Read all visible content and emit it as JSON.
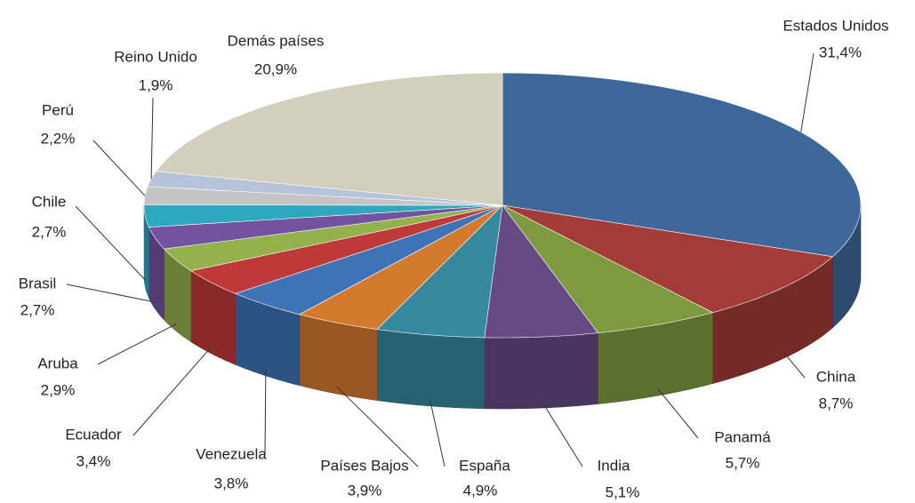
{
  "chart_data": {
    "type": "pie",
    "categories": [
      "Estados Unidos",
      "China",
      "Panamá",
      "India",
      "España",
      "Países Bajos",
      "Venezuela",
      "Ecuador",
      "Aruba",
      "Brasil",
      "Chile",
      "Perú",
      "Reino Unido",
      "Demás países"
    ],
    "values": [
      31.4,
      8.7,
      5.7,
      5.1,
      4.9,
      3.9,
      3.8,
      3.4,
      2.9,
      2.7,
      2.7,
      2.2,
      1.9,
      20.9
    ],
    "value_labels": [
      "31,4%",
      "8,7%",
      "5,7%",
      "5,1%",
      "4,9%",
      "3,9%",
      "3,8%",
      "3,4%",
      "2,9%",
      "2,7%",
      "2,7%",
      "2,2%",
      "1,9%",
      "20,9%"
    ],
    "colors": [
      "#3d6899",
      "#a33b38",
      "#7e9a40",
      "#654a85",
      "#36889e",
      "#d47a2e",
      "#3f73b8",
      "#c0393a",
      "#93b14c",
      "#7352a0",
      "#2ea7c0",
      "#c4c4c4",
      "#b7c3d9",
      "#d3cfbd"
    ]
  }
}
